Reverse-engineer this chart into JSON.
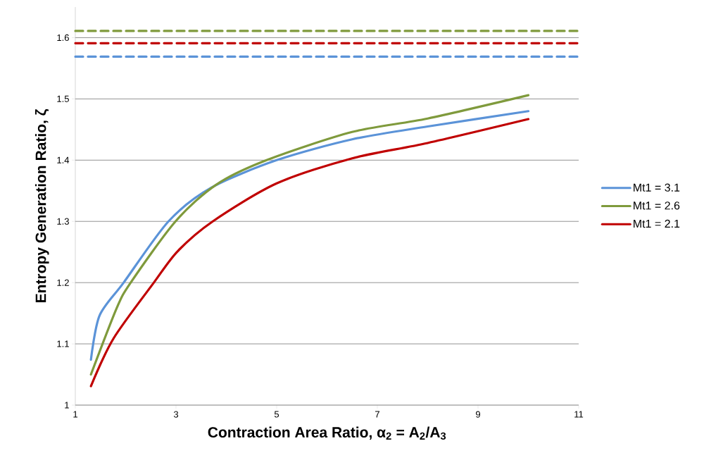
{
  "chart_data": {
    "type": "line",
    "xlabel": "Contraction Area Ratio, α$_{2}$ = A$_{2}$/A$_{3}$",
    "ylabel": "Entropy Generation Ratio, ζ",
    "xlim": [
      1,
      11
    ],
    "xticks": [
      1,
      3,
      5,
      7,
      9,
      11
    ],
    "ylim": [
      1,
      1.65
    ],
    "yticks": [
      1,
      1.1,
      1.2,
      1.3,
      1.4,
      1.5,
      1.6
    ],
    "grid": "y",
    "legend": "right",
    "marker": "none",
    "line_style": "solid",
    "series": [
      {
        "name": "Mt1 = 3.1",
        "color": "#5b93d8",
        "x": [
          1.31,
          1.48,
          1.96,
          2.85,
          3.7,
          5,
          6.5,
          8,
          10
        ],
        "values": [
          1.074,
          1.146,
          1.2,
          1.3,
          1.355,
          1.4,
          1.434,
          1.455,
          1.48
        ]
      },
      {
        "name": "Mt1 = 2.6",
        "color": "#7f9a3c",
        "x": [
          1.31,
          1.82,
          2.1,
          2.99,
          3.8,
          4.8,
          6.5,
          8,
          10
        ],
        "values": [
          1.05,
          1.158,
          1.2,
          1.3,
          1.36,
          1.4,
          1.446,
          1.468,
          1.506
        ]
      },
      {
        "name": "Mt1 = 2.1",
        "color": "#c00000",
        "x": [
          1.31,
          1.76,
          2.56,
          3.03,
          3.73,
          5,
          6.5,
          8,
          10
        ],
        "values": [
          1.031,
          1.109,
          1.2,
          1.251,
          1.3,
          1.362,
          1.403,
          1.428,
          1.467
        ]
      }
    ],
    "ref_lines": [
      {
        "axis": "y",
        "value": 1.611,
        "color": "#7f9a3c",
        "line_style": "dashed"
      },
      {
        "axis": "y",
        "value": 1.591,
        "color": "#c00000",
        "line_style": "dashed"
      },
      {
        "axis": "y",
        "value": 1.569,
        "color": "#5b93d8",
        "line_style": "dashed"
      }
    ]
  }
}
